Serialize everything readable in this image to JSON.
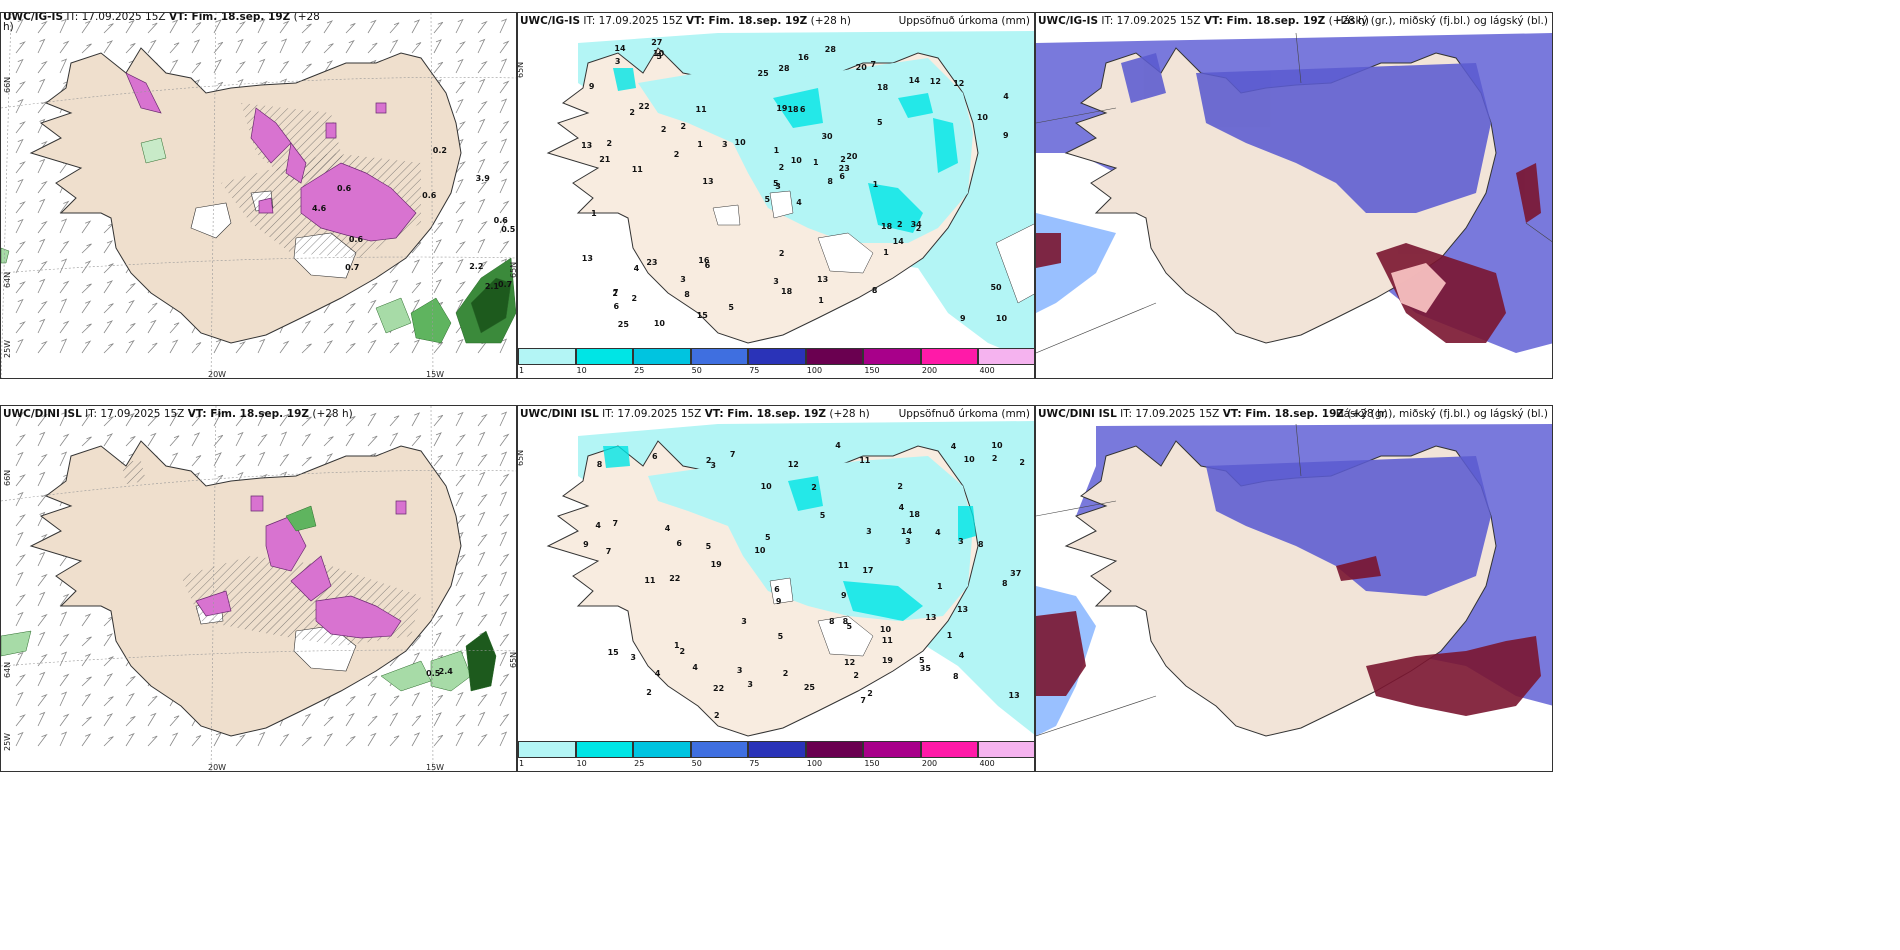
{
  "panels": {
    "p1": {
      "title_model": "UWC/IG-IS",
      "title_it": "IT: 17.09.2025 15Z",
      "title_vt": "VT: Fim. 18.sep. 19Z",
      "title_lead": "(+28",
      "title_wrap": "h)"
    },
    "p2": {
      "title_model": "UWC/IG-IS",
      "title_it": "IT: 17.09.2025 15Z",
      "title_vt": "VT: Fim. 18.sep. 19Z",
      "title_lead": "(+28 h)",
      "title_right": "Uppsöfnuð úrkoma (mm)"
    },
    "p3": {
      "title_model": "UWC/IG-IS",
      "title_it": "IT: 17.09.2025 15Z",
      "title_vt": "VT: Fim. 18.sep. 19Z",
      "title_lead": "(+28 h)",
      "title_right": "Háský (gr.), miðský (fj.bl.) og lágský (bl.)"
    },
    "p4": {
      "title_model": "UWC/DINI ISL",
      "title_it": "IT: 17.09.2025 15Z",
      "title_vt": "VT: Fim. 18.sep. 19Z",
      "title_lead": "(+28 h)"
    },
    "p5": {
      "title_model": "UWC/DINI ISL",
      "title_it": "IT: 17.09.2025 15Z",
      "title_vt": "VT: Fim. 18.sep. 19Z",
      "title_lead": "(+28 h)",
      "title_right": "Uppsöfnuð úrkoma (mm)"
    },
    "p6": {
      "title_model": "UWC/DINI ISL",
      "title_it": "IT: 17.09.2025 15Z",
      "title_vt": "VT: Fim. 18.sep. 19Z",
      "title_lead": "(+28 h)",
      "title_right": "Háský (gr.), miðský (fj.bl.) og lágský (bl.)"
    }
  },
  "axis_labels": {
    "lat66": "66N",
    "lat64": "64N",
    "lat65": "65N",
    "lon25": "25W",
    "lon20": "20W",
    "lon15": "15W"
  },
  "colorbar": {
    "ticks": [
      "1",
      "10",
      "25",
      "50",
      "75",
      "100",
      "150",
      "200",
      "400"
    ],
    "colors": [
      "#b3f5f5",
      "#00e5e5",
      "#00c4e0",
      "#3f6fe0",
      "#2a33b8",
      "#6a0050",
      "#a8008a",
      "#ff1aa8",
      "#f5b3ef"
    ]
  },
  "precip_numbers_top": [
    "4",
    "2",
    "3",
    "7",
    "2",
    "6",
    "7",
    "6",
    "18",
    "8",
    "5",
    "10",
    "11",
    "4",
    "5",
    "5",
    "10",
    "19",
    "30",
    "23",
    "10",
    "6",
    "8",
    "18",
    "20",
    "2",
    "22",
    "28",
    "21",
    "18",
    "9",
    "5",
    "3",
    "2",
    "11",
    "14",
    "16",
    "9",
    "50",
    "34",
    "28",
    "3",
    "2",
    "1",
    "15",
    "13",
    "23",
    "25",
    "18",
    "6",
    "4",
    "10",
    "9",
    "14",
    "8",
    "3",
    "10",
    "14",
    "13",
    "12",
    "16",
    "13",
    "2",
    "2",
    "12",
    "27",
    "20",
    "25",
    "10",
    "13",
    "2",
    "5",
    "2",
    "1",
    "2",
    "3",
    "2",
    "1",
    "1",
    "1",
    "1",
    "2",
    "1"
  ],
  "precip_numbers_bottom": [
    "2",
    "3",
    "2",
    "4",
    "4",
    "2",
    "8",
    "19",
    "9",
    "4",
    "3",
    "4",
    "6",
    "8",
    "3",
    "4",
    "7",
    "10",
    "13",
    "3",
    "5",
    "5",
    "22",
    "35",
    "17",
    "18",
    "22",
    "6",
    "25",
    "10",
    "11",
    "10",
    "2",
    "3",
    "7",
    "2",
    "4",
    "7",
    "37",
    "10",
    "12",
    "11",
    "2",
    "4",
    "11",
    "13",
    "8",
    "5",
    "9",
    "2",
    "3",
    "5",
    "5",
    "4",
    "8",
    "13",
    "8",
    "5",
    "2",
    "15",
    "9",
    "7",
    "14",
    "11",
    "2",
    "2",
    "6",
    "12",
    "19",
    "10",
    "8",
    "3",
    "4",
    "2",
    "3",
    "1",
    "1",
    "1"
  ],
  "wind_numbers_top": [
    "0.6",
    "0.6",
    "0.6",
    "0.5",
    "0.6",
    "0.7",
    "0.7",
    "0.2",
    "2.1",
    "3.9",
    "4.6",
    "2.2"
  ],
  "wind_numbers_bottom": [
    "0.5",
    "2.4"
  ]
}
